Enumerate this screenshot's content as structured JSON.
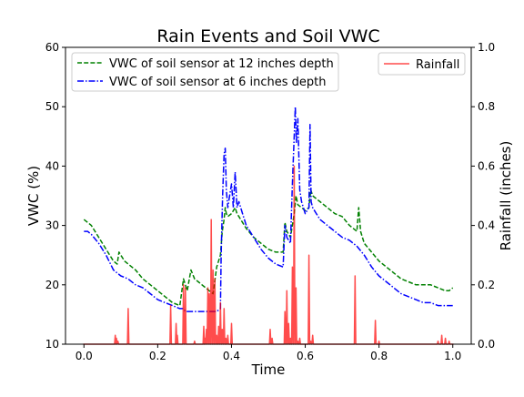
{
  "chart_data": {
    "type": "line",
    "title": "Rain Events and Soil VWC",
    "xlabel": "Time",
    "ylabel": "VWC (%)",
    "y2label": "Rainfall (inches)",
    "xlim": [
      -0.05,
      1.05
    ],
    "ylim": [
      10,
      60
    ],
    "y2lim": [
      0,
      1.0
    ],
    "x_ticks": [
      "0.0",
      "0.2",
      "0.4",
      "0.6",
      "0.8",
      "1.0"
    ],
    "y_ticks": [
      "10",
      "20",
      "30",
      "40",
      "50",
      "60"
    ],
    "y2_ticks": [
      "0.0",
      "0.2",
      "0.4",
      "0.6",
      "0.8",
      "1.0"
    ],
    "grid": false,
    "legend_left_placement": "top-left",
    "legend_right_placement": "top-right",
    "colors": {
      "vwc12": "#008000",
      "vwc6": "#0000ff",
      "rain": "#ff0000"
    },
    "series": [
      {
        "name": "VWC of soil sensor at 12 inches depth",
        "axis": "left",
        "style": "dashed",
        "x": [
          0.0,
          0.01,
          0.02,
          0.04,
          0.06,
          0.08,
          0.09,
          0.095,
          0.1,
          0.11,
          0.12,
          0.14,
          0.16,
          0.18,
          0.2,
          0.22,
          0.24,
          0.26,
          0.27,
          0.275,
          0.28,
          0.29,
          0.3,
          0.31,
          0.32,
          0.33,
          0.34,
          0.35,
          0.36,
          0.37,
          0.375,
          0.38,
          0.383,
          0.386,
          0.39,
          0.4,
          0.41,
          0.415,
          0.42,
          0.43,
          0.44,
          0.46,
          0.48,
          0.5,
          0.52,
          0.54,
          0.545,
          0.55,
          0.56,
          0.57,
          0.575,
          0.58,
          0.59,
          0.6,
          0.61,
          0.615,
          0.62,
          0.63,
          0.64,
          0.66,
          0.68,
          0.7,
          0.72,
          0.74,
          0.745,
          0.75,
          0.76,
          0.78,
          0.8,
          0.82,
          0.84,
          0.86,
          0.88,
          0.9,
          0.92,
          0.94,
          0.96,
          0.98,
          0.99,
          1.0
        ],
        "values": [
          31,
          30.5,
          30,
          28,
          26,
          24,
          23.5,
          25.5,
          25,
          24,
          23.5,
          22.5,
          21,
          20,
          19,
          18,
          17,
          16.5,
          21,
          20,
          19,
          22.5,
          21,
          20.5,
          20,
          19.5,
          19,
          18.5,
          23,
          25,
          29,
          31,
          33,
          32,
          31.5,
          32,
          33,
          32,
          31.5,
          30.5,
          29.5,
          28,
          27,
          26,
          25.5,
          25.5,
          30.5,
          29,
          28,
          32,
          35,
          33.5,
          33,
          32.5,
          33,
          36,
          35,
          34.5,
          34,
          33,
          32,
          31.5,
          30,
          29,
          33,
          29,
          27,
          25.5,
          24,
          23,
          22,
          21,
          20.5,
          20,
          20,
          20,
          19.5,
          19,
          19,
          19.5
        ]
      },
      {
        "name": "VWC of soil sensor at 6 inches depth",
        "axis": "left",
        "style": "dashdot",
        "x": [
          0.0,
          0.01,
          0.02,
          0.04,
          0.06,
          0.08,
          0.09,
          0.1,
          0.12,
          0.14,
          0.16,
          0.18,
          0.2,
          0.22,
          0.24,
          0.26,
          0.27,
          0.275,
          0.28,
          0.3,
          0.32,
          0.34,
          0.36,
          0.37,
          0.372,
          0.376,
          0.38,
          0.383,
          0.386,
          0.39,
          0.395,
          0.4,
          0.405,
          0.41,
          0.415,
          0.42,
          0.43,
          0.44,
          0.46,
          0.48,
          0.5,
          0.52,
          0.54,
          0.545,
          0.55,
          0.56,
          0.565,
          0.57,
          0.573,
          0.576,
          0.58,
          0.585,
          0.59,
          0.6,
          0.61,
          0.613,
          0.616,
          0.62,
          0.63,
          0.64,
          0.66,
          0.68,
          0.7,
          0.72,
          0.74,
          0.76,
          0.78,
          0.8,
          0.82,
          0.84,
          0.86,
          0.88,
          0.9,
          0.92,
          0.94,
          0.96,
          0.98,
          1.0
        ],
        "values": [
          29,
          29,
          28.5,
          27,
          25,
          22.5,
          22,
          21.5,
          21,
          20,
          19.5,
          18.5,
          17.5,
          17,
          16.5,
          16,
          16,
          15.5,
          15.5,
          15.5,
          15.5,
          15.5,
          15.5,
          16,
          25,
          35,
          42,
          43,
          36,
          33,
          35,
          37,
          33,
          39,
          33,
          34,
          32,
          30,
          28,
          26,
          24.5,
          23.5,
          23,
          30,
          28,
          27,
          37,
          45,
          50,
          44,
          48,
          36,
          34,
          32,
          33,
          47,
          34,
          33,
          32,
          31,
          30,
          29,
          28,
          27.5,
          26.5,
          25,
          23,
          21.5,
          20.5,
          19.5,
          18.5,
          18,
          17.5,
          17,
          17,
          16.5,
          16.5,
          16.5
        ]
      },
      {
        "name": "Rainfall",
        "axis": "right",
        "style": "solid",
        "x": [
          0.0,
          0.085,
          0.088,
          0.092,
          0.12,
          0.235,
          0.25,
          0.253,
          0.27,
          0.275,
          0.3,
          0.325,
          0.328,
          0.332,
          0.336,
          0.34,
          0.345,
          0.35,
          0.355,
          0.36,
          0.365,
          0.37,
          0.375,
          0.38,
          0.385,
          0.39,
          0.4,
          0.505,
          0.51,
          0.545,
          0.55,
          0.555,
          0.56,
          0.565,
          0.57,
          0.575,
          0.58,
          0.585,
          0.61,
          0.615,
          0.62,
          0.735,
          0.79,
          0.8,
          0.96,
          0.97,
          0.98,
          0.99,
          1.0
        ],
        "values": [
          0.0,
          0.03,
          0.02,
          0.01,
          0.12,
          0.13,
          0.07,
          0.03,
          0.2,
          0.19,
          0.01,
          0.06,
          0.02,
          0.05,
          0.19,
          0.17,
          0.42,
          0.25,
          0.22,
          0.03,
          0.06,
          0.14,
          0.05,
          0.12,
          0.02,
          0.03,
          0.07,
          0.05,
          0.02,
          0.11,
          0.18,
          0.07,
          0.02,
          0.26,
          0.6,
          0.19,
          0.01,
          0.02,
          0.3,
          0.01,
          0.03,
          0.23,
          0.08,
          0.01,
          0.01,
          0.03,
          0.02,
          0.01,
          0.0
        ]
      }
    ]
  }
}
